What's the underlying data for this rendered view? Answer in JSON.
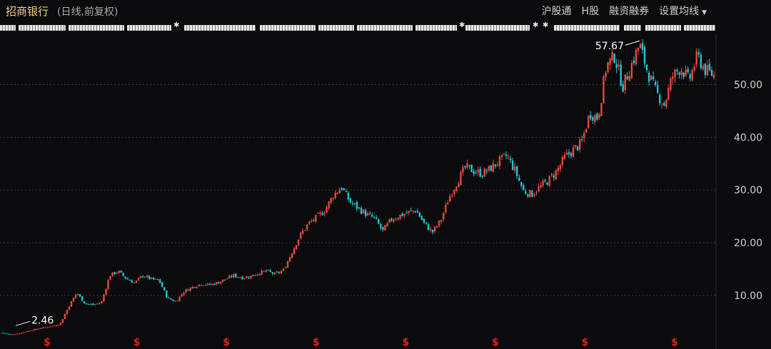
{
  "header": {
    "stock_name": "招商银行",
    "period": "(日线,前复权)",
    "toolbar": {
      "hk_connect": "沪股通",
      "h_share": "H股",
      "margin": "融资融券",
      "ma_settings": "设置均线"
    }
  },
  "colors": {
    "background": "#0b0b0d",
    "up": "#e8473f",
    "down": "#1fc6cf",
    "grid": "#3a3a3a",
    "axis_text": "#d0d0d0",
    "dividend_marker": "#e0201a"
  },
  "chart_data": {
    "type": "candlestick",
    "title": "招商银行",
    "subtitle": "(日线,前复权)",
    "y_ticks": [
      "10.00",
      "20.00",
      "30.00",
      "40.00",
      "50.00"
    ],
    "ylim": [
      3.5,
      59
    ],
    "grid": true,
    "dividend_marker": "$",
    "dividend_marker_count": 8,
    "annotations": [
      {
        "label": "2.46",
        "value": 2.46,
        "type": "min"
      },
      {
        "label": "57.67",
        "value": 57.67,
        "type": "max"
      }
    ],
    "trend_close": [
      2.9,
      2.6,
      2.8,
      3.2,
      3.6,
      3.9,
      4.2,
      4.6,
      7.8,
      10.5,
      8.5,
      8.2,
      8.7,
      13.8,
      14.6,
      13.2,
      12.4,
      13.8,
      13.1,
      12.8,
      9.4,
      8.9,
      10.8,
      11.6,
      12.2,
      12.0,
      12.4,
      13.1,
      13.8,
      13.4,
      13.6,
      14.3,
      14.6,
      14.0,
      14.8,
      18.2,
      21.4,
      23.6,
      24.8,
      26.2,
      29.0,
      30.6,
      27.8,
      26.6,
      25.4,
      24.6,
      22.2,
      24.4,
      25.1,
      25.7,
      26.2,
      23.6,
      22.0,
      24.2,
      28.6,
      31.6,
      34.4,
      33.6,
      33.1,
      34.1,
      35.4,
      36.5,
      33.6,
      29.8,
      29.2,
      30.6,
      31.8,
      33.6,
      36.2,
      37.6,
      38.9,
      44.6,
      43.6,
      53.6,
      55.4,
      49.6,
      53.6,
      57.6,
      52.4,
      48.6,
      46.2,
      51.6,
      53.2,
      50.8,
      55.4,
      52.6,
      51.8
    ]
  }
}
